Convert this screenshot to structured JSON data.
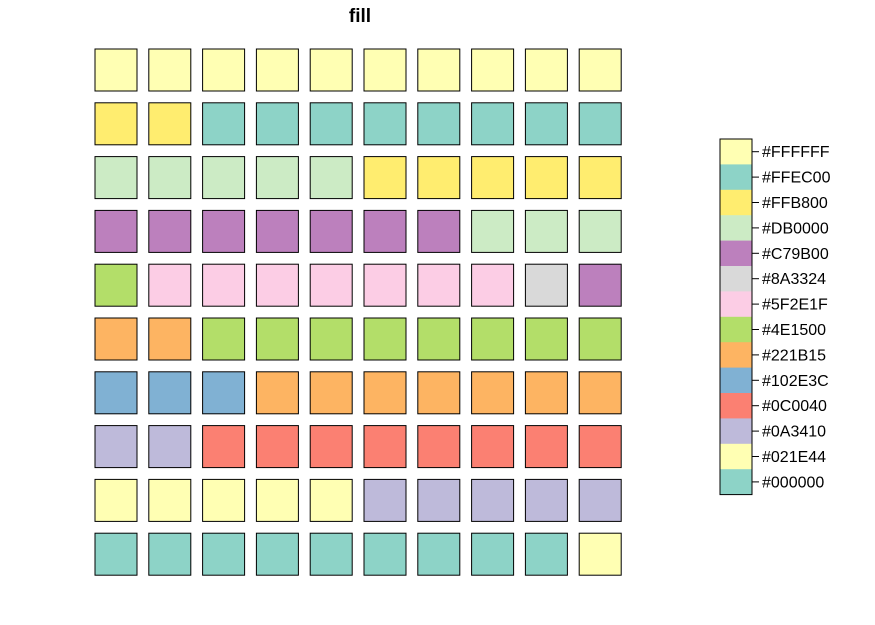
{
  "chart_data": {
    "type": "heatmap",
    "title": "fill",
    "palette": [
      "#FFFFB3",
      "#8DD3C7",
      "#FFED6F",
      "#CCEBC5",
      "#BC80BD",
      "#D9D9D9",
      "#FCCDE5",
      "#B3DE69",
      "#FDB462",
      "#80B1D3",
      "#FB8072",
      "#BEBADA",
      "#FFFFB3",
      "#8DD3C7"
    ],
    "grid": [
      [
        0,
        0,
        0,
        0,
        0,
        0,
        0,
        0,
        0,
        0
      ],
      [
        2,
        2,
        1,
        1,
        1,
        1,
        1,
        1,
        1,
        1
      ],
      [
        3,
        3,
        3,
        3,
        3,
        2,
        2,
        2,
        2,
        2
      ],
      [
        4,
        4,
        4,
        4,
        4,
        4,
        4,
        3,
        3,
        3
      ],
      [
        7,
        6,
        6,
        6,
        6,
        6,
        6,
        6,
        5,
        4
      ],
      [
        8,
        8,
        7,
        7,
        7,
        7,
        7,
        7,
        7,
        7
      ],
      [
        9,
        9,
        9,
        8,
        8,
        8,
        8,
        8,
        8,
        8
      ],
      [
        11,
        11,
        10,
        10,
        10,
        10,
        10,
        10,
        10,
        10
      ],
      [
        12,
        12,
        12,
        12,
        12,
        11,
        11,
        11,
        11,
        11
      ],
      [
        13,
        13,
        13,
        13,
        13,
        13,
        13,
        13,
        13,
        12
      ]
    ],
    "legend": {
      "position": "right",
      "labels": [
        "#FFFFFF",
        "#FFEC00",
        "#FFB800",
        "#DB0000",
        "#C79B00",
        "#8A3324",
        "#5F2E1F",
        "#4E1500",
        "#221B15",
        "#102E3C",
        "#0C0040",
        "#0A3410",
        "#021E44",
        "#000000"
      ]
    }
  }
}
